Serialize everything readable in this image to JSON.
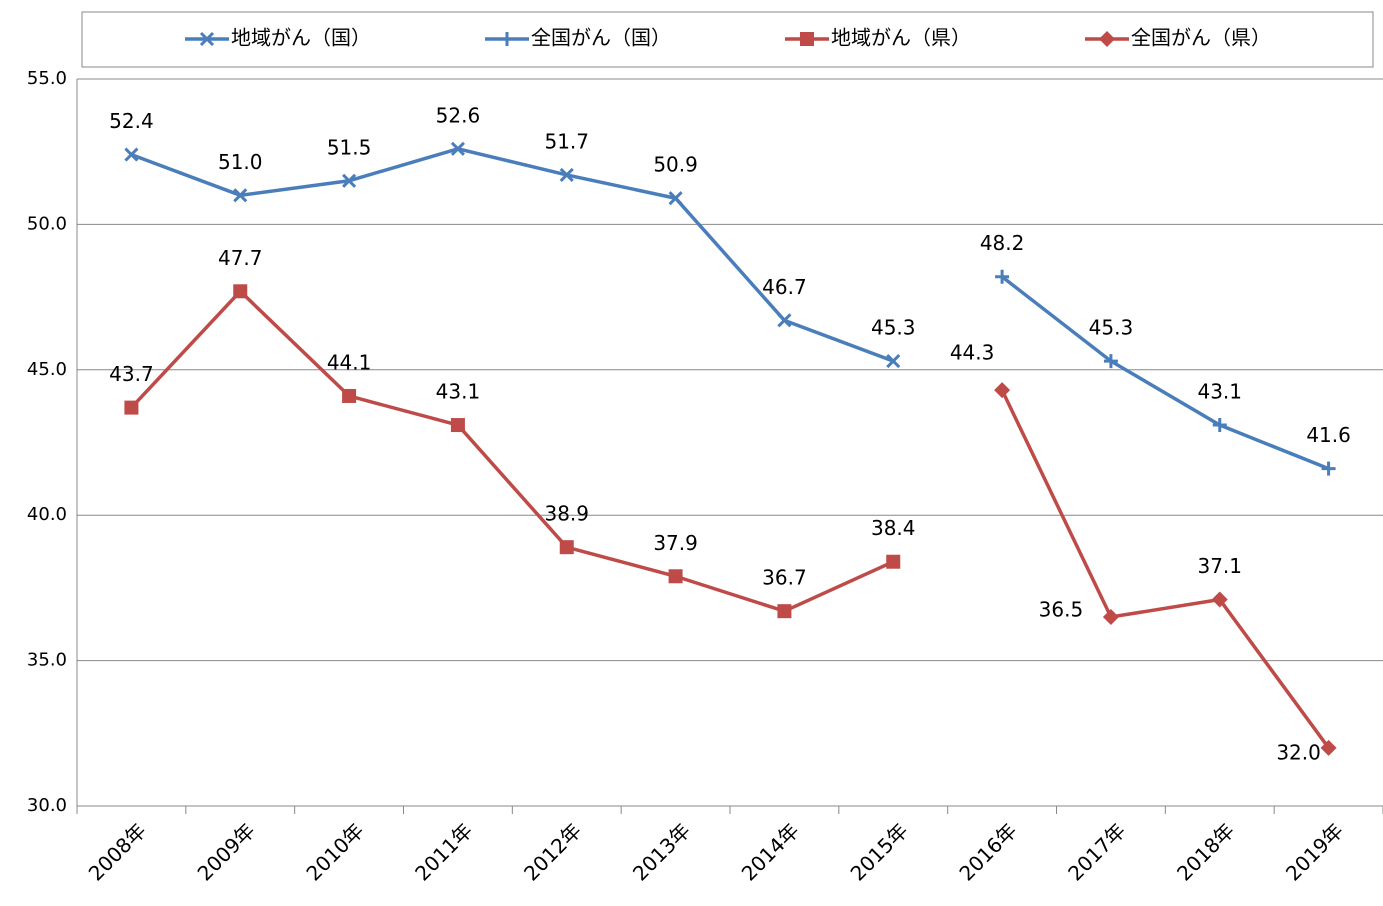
{
  "chart_data": {
    "type": "line",
    "categories": [
      "2008年",
      "2009年",
      "2010年",
      "2011年",
      "2012年",
      "2013年",
      "2014年",
      "2015年",
      "2016年",
      "2017年",
      "2018年",
      "2019年"
    ],
    "series": [
      {
        "name": "地域がん（国）",
        "color": "#4a7ebb",
        "marker": "x",
        "values": [
          52.4,
          51.0,
          51.5,
          52.6,
          51.7,
          50.9,
          46.7,
          45.3,
          null,
          null,
          null,
          null
        ],
        "value_labels": [
          "52.4",
          "51.0",
          "51.5",
          "52.6",
          "51.7",
          "50.9",
          "46.7",
          "45.3",
          null,
          null,
          null,
          null
        ]
      },
      {
        "name": "全国がん（国）",
        "color": "#4a7ebb",
        "marker": "plus",
        "values": [
          null,
          null,
          null,
          null,
          null,
          null,
          null,
          null,
          48.2,
          45.3,
          43.1,
          41.6
        ],
        "value_labels": [
          null,
          null,
          null,
          null,
          null,
          null,
          null,
          null,
          "48.2",
          "45.3",
          "43.1",
          "41.6"
        ]
      },
      {
        "name": "地域がん（県）",
        "color": "#be4b48",
        "marker": "square",
        "values": [
          43.7,
          47.7,
          44.1,
          43.1,
          38.9,
          37.9,
          36.7,
          38.4,
          null,
          null,
          null,
          null
        ],
        "value_labels": [
          "43.7",
          "47.7",
          "44.1",
          "43.1",
          "38.9",
          "37.9",
          "36.7",
          "38.4",
          null,
          null,
          null,
          null
        ]
      },
      {
        "name": "全国がん（県）",
        "color": "#be4b48",
        "marker": "diamond",
        "values": [
          null,
          null,
          null,
          null,
          null,
          null,
          null,
          null,
          44.3,
          36.5,
          37.1,
          32.0
        ],
        "value_labels": [
          null,
          null,
          null,
          null,
          null,
          null,
          null,
          null,
          "44.3",
          "36.5",
          "37.1",
          "32.0"
        ]
      }
    ],
    "ylim": [
      30,
      55
    ],
    "yticks": [
      {
        "value": 30,
        "label": "30.0"
      },
      {
        "value": 35,
        "label": "35.0"
      },
      {
        "value": 40,
        "label": "40.0"
      },
      {
        "value": 45,
        "label": "45.0"
      },
      {
        "value": 50,
        "label": "50.0"
      },
      {
        "value": 55,
        "label": "55.0"
      }
    ],
    "grid": true,
    "legend": "top"
  }
}
